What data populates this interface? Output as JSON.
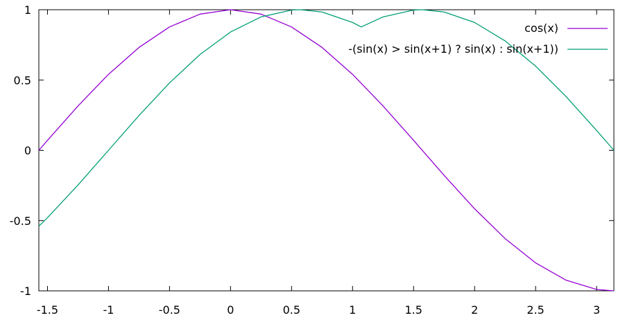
{
  "chart_data": {
    "type": "line",
    "title": "",
    "xlabel": "",
    "ylabel": "",
    "xlim": [
      -1.5708,
      3.1416
    ],
    "ylim": [
      -1,
      1
    ],
    "x_ticks": [
      -1.5,
      -1,
      -0.5,
      0,
      0.5,
      1,
      1.5,
      2,
      2.5,
      3
    ],
    "x_tick_labels": [
      "-1.5",
      "-1",
      "-0.5",
      "0",
      "0.5",
      "1",
      "1.5",
      "2",
      "2.5",
      "3"
    ],
    "y_ticks": [
      -1,
      -0.5,
      0,
      0.5,
      1
    ],
    "y_tick_labels": [
      "-1",
      "-0.5",
      "0",
      "0.5",
      "1"
    ],
    "grid": false,
    "legend_position": "top-right",
    "series": [
      {
        "name": "cos(x)",
        "color": "#9400d3",
        "x": [
          -1.5708,
          -1.5,
          -1.25,
          -1.0,
          -0.75,
          -0.5,
          -0.25,
          0.0,
          0.25,
          0.5,
          0.75,
          1.0,
          1.25,
          1.5,
          1.75,
          2.0,
          2.25,
          2.5,
          2.75,
          3.0,
          3.1416
        ],
        "y": [
          0.0,
          0.0707,
          0.3153,
          0.5403,
          0.7317,
          0.8776,
          0.9689,
          1.0,
          0.9689,
          0.8776,
          0.7317,
          0.5403,
          0.3153,
          0.0707,
          -0.1782,
          -0.4161,
          -0.6282,
          -0.8011,
          -0.9243,
          -0.99,
          -1.0
        ]
      },
      {
        "name": "-(sin(x) > sin(x+1) ? sin(x) : sin(x+1))",
        "color": "#009e73",
        "x": [
          -1.5708,
          -1.5,
          -1.25,
          -1.0,
          -0.75,
          -0.5,
          -0.25,
          0.0,
          0.25,
          0.5,
          0.5708,
          0.75,
          1.0,
          1.0708,
          1.25,
          1.5,
          1.5708,
          1.75,
          2.0,
          2.25,
          2.5,
          2.75,
          3.0,
          3.1416
        ],
        "y": [
          -0.5403,
          -0.4794,
          -0.2474,
          0.0,
          0.2474,
          0.4794,
          0.6816,
          0.8415,
          0.949,
          0.9975,
          1.0,
          0.984,
          0.9093,
          0.8776,
          0.949,
          0.9975,
          1.0,
          0.984,
          0.9093,
          0.7781,
          0.5985,
          0.3817,
          0.1411,
          0.0
        ]
      }
    ]
  }
}
